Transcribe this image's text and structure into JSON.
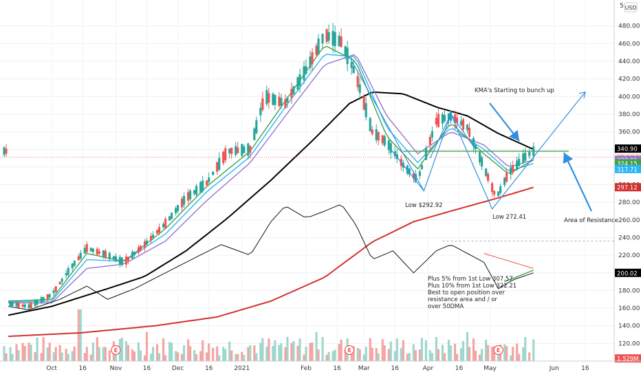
{
  "chart_data": {
    "type": "candlestick",
    "currency": "USD",
    "y_axis": {
      "ticks": [
        120,
        140,
        160,
        180,
        200,
        220,
        240,
        260,
        280,
        300,
        320,
        340,
        360,
        380,
        400,
        420,
        440,
        460,
        480
      ],
      "top_label": "5",
      "ylim": [
        100,
        500
      ]
    },
    "x_axis": {
      "ticks": [
        "Oct",
        "16",
        "Nov",
        "16",
        "Dec",
        "16",
        "2021",
        "Feb",
        "16",
        "Mar",
        "16",
        "Apr",
        "16",
        "May",
        "Jun",
        "16"
      ]
    },
    "price_badges": [
      {
        "label": "340.90",
        "value": 340.9,
        "color": "#000000",
        "text_color": "#ffffff"
      },
      {
        "label": "02:06:03",
        "value": 331.0,
        "color": "#fde2e2",
        "text_color": "#ef5350"
      },
      {
        "label": "328.01",
        "value": 328.0,
        "color": "#9575cd",
        "text_color": "#ffffff"
      },
      {
        "label": "324.15",
        "value": 324.15,
        "color": "#43a047",
        "text_color": "#ffffff"
      },
      {
        "label": "317.71",
        "value": 317.7,
        "color": "#29b6f6",
        "text_color": "#ffffff"
      },
      {
        "label": "297.12",
        "value": 297.1,
        "color": "#d32f2f",
        "text_color": "#ffffff"
      },
      {
        "label": "200.02",
        "value": 200.0,
        "color": "#000000",
        "text_color": "#ffffff"
      },
      {
        "label": "1.529M",
        "value": 103.0,
        "color": "#ef5350",
        "text_color": "#ffffff"
      }
    ],
    "annotations": [
      {
        "text": "KMA's Starting to bunch up"
      },
      {
        "text": "Low $292.92"
      },
      {
        "text": "Low 272.41"
      },
      {
        "text": "Area of Resistance"
      },
      {
        "text": "Plus 5% from 1st Low 307.57"
      },
      {
        "text": "Plus 10% from 1st Low 322.21"
      },
      {
        "text": "Best to open position over"
      },
      {
        "text": "resistance area and / or"
      },
      {
        "text": "over 50DMA"
      }
    ],
    "earnings_marker": "E",
    "earnings_at": [
      "Nov",
      "Feb",
      "May"
    ],
    "resistance_level": 338,
    "low_1": 292.92,
    "low_2": 272.41,
    "series": {
      "close_path": [
        [
          "2020-09-10",
          165
        ],
        [
          "2020-09-20",
          162
        ],
        [
          "2020-10-01",
          175
        ],
        [
          "2020-10-10",
          205
        ],
        [
          "2020-10-18",
          228
        ],
        [
          "2020-10-28",
          220
        ],
        [
          "2020-11-05",
          212
        ],
        [
          "2020-11-15",
          232
        ],
        [
          "2020-11-25",
          256
        ],
        [
          "2020-12-05",
          285
        ],
        [
          "2020-12-15",
          302
        ],
        [
          "2020-12-25",
          338
        ],
        [
          "2021-01-05",
          340
        ],
        [
          "2021-01-12",
          400
        ],
        [
          "2021-01-22",
          392
        ],
        [
          "2021-02-01",
          430
        ],
        [
          "2021-02-10",
          470
        ],
        [
          "2021-02-18",
          462
        ],
        [
          "2021-02-25",
          425
        ],
        [
          "2021-03-05",
          360
        ],
        [
          "2021-03-12",
          348
        ],
        [
          "2021-03-20",
          322
        ],
        [
          "2021-03-27",
          305
        ],
        [
          "2021-04-05",
          372
        ],
        [
          "2021-04-12",
          378
        ],
        [
          "2021-04-20",
          365
        ],
        [
          "2021-04-28",
          320
        ],
        [
          "2021-05-04",
          285
        ],
        [
          "2021-05-10",
          313
        ],
        [
          "2021-05-17",
          330
        ],
        [
          "2021-05-22",
          338
        ]
      ],
      "ma_fast": [
        [
          "2020-09-10",
          168
        ],
        [
          "2020-10-01",
          170
        ],
        [
          "2020-10-18",
          222
        ],
        [
          "2020-11-05",
          213
        ],
        [
          "2020-11-25",
          250
        ],
        [
          "2020-12-15",
          298
        ],
        [
          "2021-01-05",
          338
        ],
        [
          "2021-01-22",
          395
        ],
        [
          "2021-02-10",
          458
        ],
        [
          "2021-02-25",
          440
        ],
        [
          "2021-03-12",
          355
        ],
        [
          "2021-03-27",
          318
        ],
        [
          "2021-04-12",
          370
        ],
        [
          "2021-04-28",
          335
        ],
        [
          "2021-05-10",
          312
        ],
        [
          "2021-05-22",
          328
        ]
      ],
      "ma_mid": [
        [
          "2020-09-10",
          167
        ],
        [
          "2020-10-01",
          168
        ],
        [
          "2020-10-18",
          215
        ],
        [
          "2020-11-05",
          213
        ],
        [
          "2020-11-25",
          244
        ],
        [
          "2020-12-15",
          292
        ],
        [
          "2021-01-05",
          332
        ],
        [
          "2021-01-22",
          388
        ],
        [
          "2021-02-10",
          448
        ],
        [
          "2021-02-25",
          445
        ],
        [
          "2021-03-12",
          365
        ],
        [
          "2021-03-27",
          325
        ],
        [
          "2021-04-12",
          365
        ],
        [
          "2021-04-28",
          340
        ],
        [
          "2021-05-10",
          315
        ],
        [
          "2021-05-22",
          324
        ]
      ],
      "ma_slow": [
        [
          "2020-09-10",
          166
        ],
        [
          "2020-10-01",
          166
        ],
        [
          "2020-10-18",
          205
        ],
        [
          "2020-11-05",
          210
        ],
        [
          "2020-11-25",
          236
        ],
        [
          "2020-12-15",
          282
        ],
        [
          "2021-01-05",
          325
        ],
        [
          "2021-01-22",
          378
        ],
        [
          "2021-02-10",
          436
        ],
        [
          "2021-02-25",
          448
        ],
        [
          "2021-03-12",
          378
        ],
        [
          "2021-03-27",
          335
        ],
        [
          "2021-04-12",
          360
        ],
        [
          "2021-04-28",
          345
        ],
        [
          "2021-05-10",
          320
        ],
        [
          "2021-05-22",
          328
        ]
      ],
      "ma_50": [
        [
          "2020-09-10",
          152
        ],
        [
          "2020-10-01",
          162
        ],
        [
          "2020-10-28",
          182
        ],
        [
          "2020-11-15",
          196
        ],
        [
          "2020-12-05",
          225
        ],
        [
          "2020-12-25",
          262
        ],
        [
          "2021-01-15",
          305
        ],
        [
          "2021-02-05",
          352
        ],
        [
          "2021-02-22",
          392
        ],
        [
          "2021-03-05",
          405
        ],
        [
          "2021-03-20",
          403
        ],
        [
          "2021-04-05",
          388
        ],
        [
          "2021-04-20",
          378
        ],
        [
          "2021-05-05",
          358
        ],
        [
          "2021-05-22",
          340
        ]
      ],
      "ma_200": [
        [
          "2020-09-10",
          128
        ],
        [
          "2020-10-15",
          132
        ],
        [
          "2020-11-20",
          140
        ],
        [
          "2020-12-20",
          150
        ],
        [
          "2021-01-15",
          168
        ],
        [
          "2021-02-10",
          195
        ],
        [
          "2021-03-05",
          235
        ],
        [
          "2021-03-25",
          258
        ],
        [
          "2021-04-15",
          272
        ],
        [
          "2021-05-05",
          285
        ],
        [
          "2021-05-22",
          297
        ]
      ],
      "relative_strength": [
        [
          "2020-09-10",
          162
        ],
        [
          "2020-09-20",
          158
        ],
        [
          "2020-10-05",
          170
        ],
        [
          "2020-10-18",
          185
        ],
        [
          "2020-10-28",
          170
        ],
        [
          "2020-11-10",
          182
        ],
        [
          "2020-11-25",
          200
        ],
        [
          "2020-12-10",
          218
        ],
        [
          "2020-12-22",
          232
        ],
        [
          "2021-01-05",
          220
        ],
        [
          "2021-01-15",
          258
        ],
        [
          "2021-01-22",
          276
        ],
        [
          "2021-02-01",
          262
        ],
        [
          "2021-02-10",
          270
        ],
        [
          "2021-02-18",
          278
        ],
        [
          "2021-02-25",
          255
        ],
        [
          "2021-03-05",
          215
        ],
        [
          "2021-03-15",
          225
        ],
        [
          "2021-03-25",
          200
        ],
        [
          "2021-04-05",
          225
        ],
        [
          "2021-04-12",
          232
        ],
        [
          "2021-04-20",
          222
        ],
        [
          "2021-04-28",
          212
        ],
        [
          "2021-05-05",
          182
        ],
        [
          "2021-05-12",
          192
        ],
        [
          "2021-05-22",
          200
        ]
      ]
    },
    "volume": {
      "bars_count": 170,
      "unit": "M",
      "last": "1.529M"
    }
  }
}
